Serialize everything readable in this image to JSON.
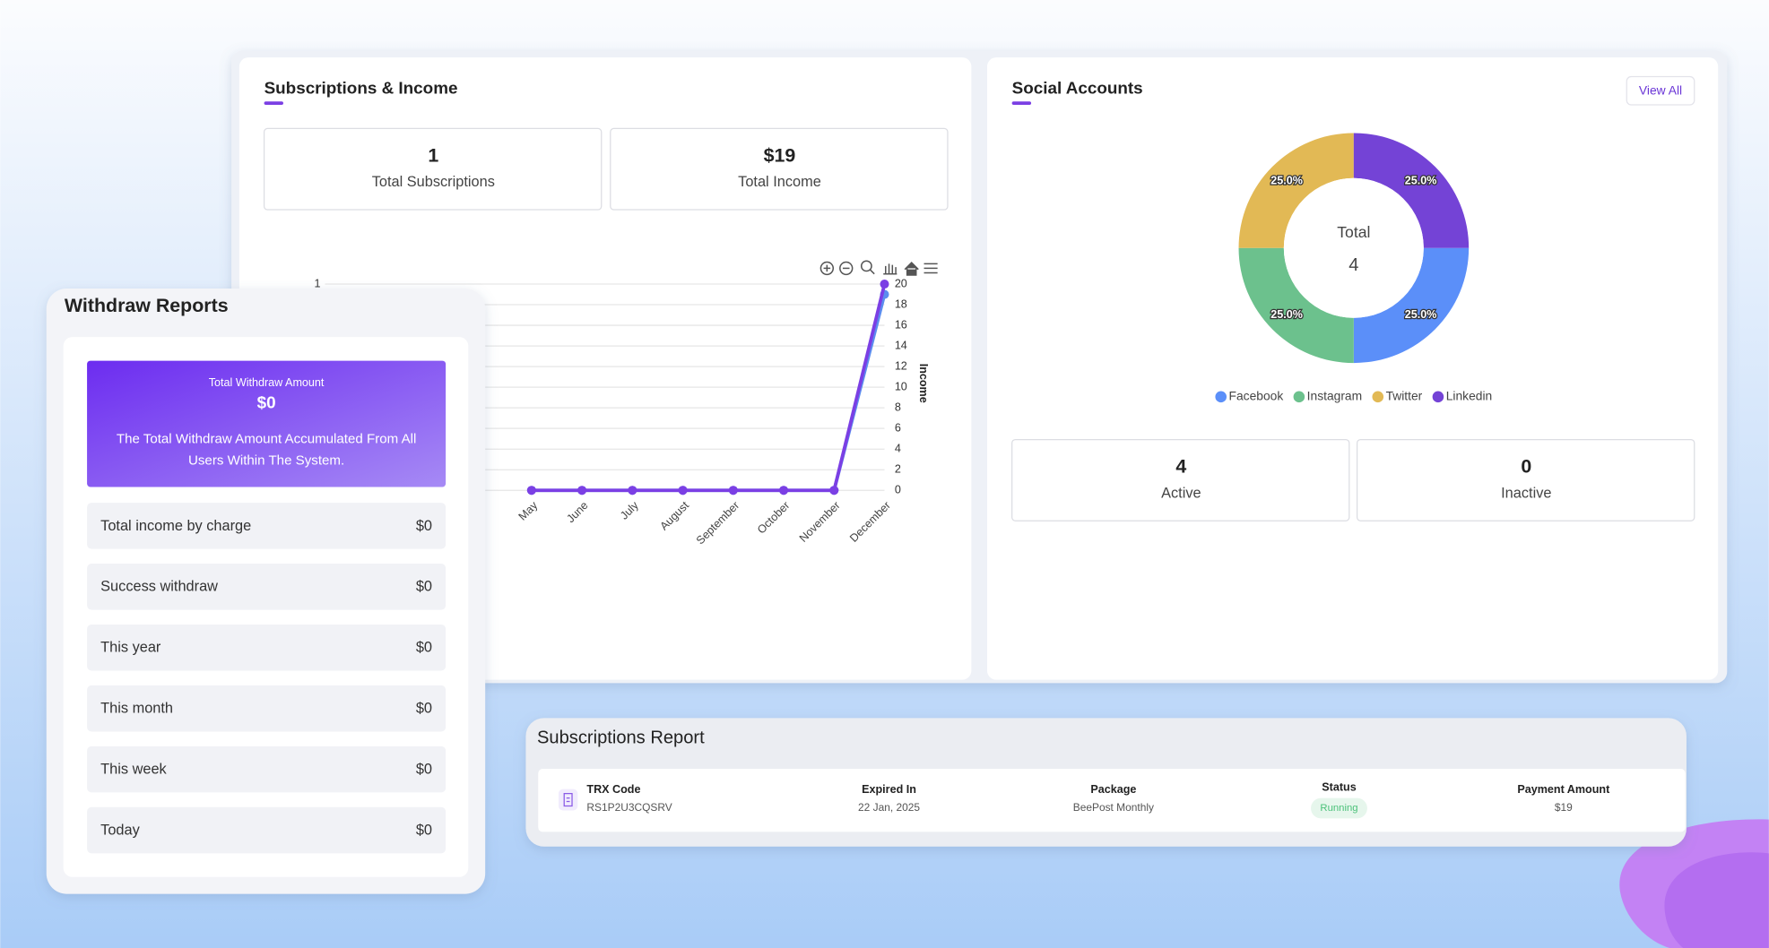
{
  "subscriptions_income": {
    "title": "Subscriptions & Income",
    "stats": [
      {
        "value": "1",
        "label": "Total Subscriptions"
      },
      {
        "value": "$19",
        "label": "Total Income"
      }
    ],
    "chart": {
      "type": "line",
      "categories": [
        "May",
        "June",
        "July",
        "August",
        "September",
        "October",
        "November",
        "December"
      ],
      "y2_label": "Income",
      "ylim": [
        0,
        1
      ],
      "yticks": [
        1
      ],
      "y2lim": [
        0,
        20
      ],
      "y2ticks": [
        0,
        2,
        4,
        6,
        8,
        10,
        12,
        14,
        16,
        18,
        20
      ],
      "grid": true,
      "series": [
        {
          "color": "#7b3fe4",
          "values": [
            0,
            0,
            0,
            0,
            0,
            0,
            0,
            1
          ]
        },
        {
          "color": "#5b8def",
          "axis": "y2",
          "values": [
            0,
            0,
            0,
            0,
            0,
            0,
            0,
            19
          ]
        }
      ]
    }
  },
  "social_accounts": {
    "title": "Social Accounts",
    "button": "View All",
    "chart": {
      "type": "doughnut",
      "center_label": "Total",
      "center_value": 4,
      "categories": [
        "Facebook",
        "Instagram",
        "Twitter",
        "Linkedin"
      ],
      "values": [
        25,
        25,
        25,
        25
      ],
      "value_labels": [
        "25.0%",
        "25.0%",
        "25.0%",
        "25.0%"
      ],
      "colors": [
        "#5b8ff9",
        "#6cc18d",
        "#e2b955",
        "#7443d6"
      ]
    },
    "stats": [
      {
        "value": 4,
        "label": "Active"
      },
      {
        "value": 0,
        "label": "Inactive"
      }
    ]
  },
  "withdraw_reports": {
    "title": "Withdraw Reports",
    "total": {
      "label": "Total Withdraw Amount",
      "value": "$0",
      "description": "The Total Withdraw Amount Accumulated From All Users Within The System."
    },
    "rows": [
      {
        "label": "Total income by charge",
        "value": "$0"
      },
      {
        "label": "Success withdraw",
        "value": "$0"
      },
      {
        "label": "This year",
        "value": "$0"
      },
      {
        "label": "This month",
        "value": "$0"
      },
      {
        "label": "This week",
        "value": "$0"
      },
      {
        "label": "Today",
        "value": "$0"
      }
    ]
  },
  "subscriptions_report": {
    "title": "Subscriptions Report",
    "columns": [
      "TRX Code",
      "Expired In",
      "Package",
      "Status",
      "Payment Amount"
    ],
    "rows": [
      [
        "RS1P2U3CQSRV",
        "22 Jan, 2025",
        "BeePost Monthly",
        "Running",
        "$19"
      ]
    ]
  }
}
